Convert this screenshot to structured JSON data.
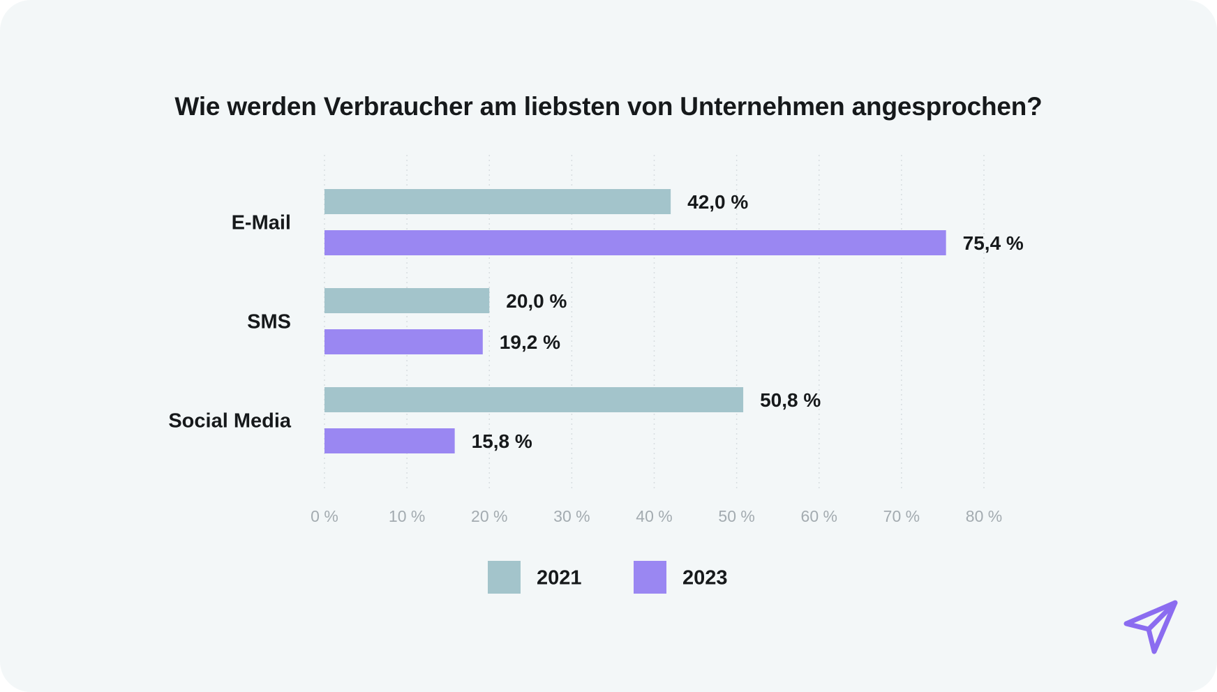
{
  "colors": {
    "background": "#f3f7f8",
    "series_2021": "#a3c4cb",
    "series_2023": "#9a87f2",
    "gridline": "#d7dde0",
    "tick_text": "#a3abb0",
    "brand": "#8b6cf0"
  },
  "brand_logo": {
    "icon": "paper-plane-icon"
  },
  "chart_data": {
    "type": "bar",
    "orientation": "horizontal",
    "title": "Wie werden Verbraucher am liebsten von Unternehmen angesprochen?",
    "categories": [
      "E-Mail",
      "SMS",
      "Social Media"
    ],
    "series": [
      {
        "name": "2021",
        "color": "#a3c4cb",
        "values": [
          42.0,
          20.0,
          50.8
        ],
        "labels": [
          "42,0 %",
          "20,0 %",
          "50,8 %"
        ]
      },
      {
        "name": "2023",
        "color": "#9a87f2",
        "values": [
          75.4,
          19.2,
          15.8
        ],
        "labels": [
          "75,4 %",
          "19,2 %",
          "15,8 %"
        ]
      }
    ],
    "xlim": [
      0,
      80
    ],
    "xticks": [
      0,
      10,
      20,
      30,
      40,
      50,
      60,
      70,
      80
    ],
    "xtick_labels": [
      "0 %",
      "10 %",
      "20 %",
      "30 %",
      "40 %",
      "50 %",
      "60 %",
      "70 %",
      "80 %"
    ],
    "grid": true,
    "grid_style": "dotted vertical",
    "legend": {
      "placement": "bottom-center",
      "entries": [
        "2021",
        "2023"
      ]
    },
    "xlabel": "",
    "ylabel": ""
  }
}
